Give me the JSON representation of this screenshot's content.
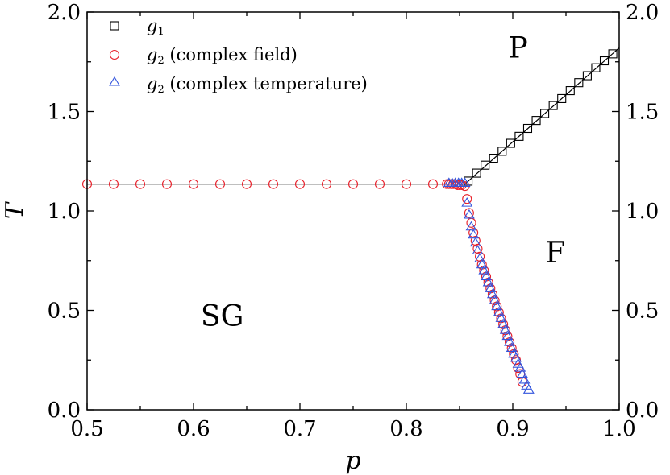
{
  "chart_data": {
    "type": "scatter",
    "title": "",
    "xlabel": "p",
    "ylabel": "T",
    "xlim": [
      0.5,
      1.0
    ],
    "ylim": [
      0.0,
      2.0
    ],
    "grid": false,
    "legend_position": "top-left",
    "xticks": [
      0.5,
      0.6,
      0.7,
      0.8,
      0.9,
      1.0
    ],
    "xtick_labels": [
      "0.5",
      "0.6",
      "0.7",
      "0.8",
      "0.9",
      "1.0"
    ],
    "yticks": [
      0.0,
      0.5,
      1.0,
      1.5,
      2.0
    ],
    "ytick_labels": [
      "0.0",
      "0.5",
      "1.0",
      "1.5",
      "2.0"
    ],
    "regions": [
      {
        "label": "P",
        "x": 0.905,
        "y": 1.82
      },
      {
        "label": "F",
        "x": 0.94,
        "y": 0.79
      },
      {
        "label": "SG",
        "x": 0.627,
        "y": 0.47
      }
    ],
    "lines": [
      {
        "name": "spin-glass boundary",
        "x": [
          0.5,
          0.855
        ],
        "y": [
          1.135,
          1.135
        ]
      },
      {
        "name": "paramagnet boundary",
        "x": [
          0.855,
          1.0
        ],
        "y": [
          1.135,
          1.82
        ]
      }
    ],
    "series": [
      {
        "name": "g1",
        "legend_main": "g",
        "legend_sub": "1",
        "legend_suffix": "",
        "marker": "square",
        "color": "#000000",
        "x": [
          0.858,
          0.866,
          0.874,
          0.882,
          0.89,
          0.898,
          0.906,
          0.914,
          0.922,
          0.93,
          0.938,
          0.946,
          0.954,
          0.962,
          0.97,
          0.978,
          0.986,
          0.994
        ],
        "y": [
          1.15,
          1.19,
          1.23,
          1.265,
          1.3,
          1.34,
          1.375,
          1.415,
          1.455,
          1.49,
          1.53,
          1.565,
          1.605,
          1.645,
          1.68,
          1.72,
          1.755,
          1.79
        ]
      },
      {
        "name": "g2 (complex field)",
        "legend_main": "g",
        "legend_sub": "2",
        "legend_suffix": " (complex field)",
        "marker": "circle",
        "color": "#e8202a",
        "x": [
          0.5,
          0.525,
          0.55,
          0.575,
          0.6,
          0.625,
          0.65,
          0.675,
          0.7,
          0.725,
          0.75,
          0.775,
          0.8,
          0.825,
          0.838,
          0.84,
          0.842,
          0.844,
          0.846,
          0.848,
          0.85,
          0.852,
          0.855,
          0.857,
          0.859,
          0.861,
          0.863,
          0.865,
          0.867,
          0.869,
          0.871,
          0.873,
          0.875,
          0.877,
          0.879,
          0.881,
          0.883,
          0.885,
          0.887,
          0.889,
          0.891,
          0.893,
          0.895,
          0.897,
          0.899,
          0.901,
          0.903,
          0.905,
          0.907,
          0.909
        ],
        "y": [
          1.135,
          1.135,
          1.135,
          1.135,
          1.135,
          1.135,
          1.135,
          1.135,
          1.135,
          1.135,
          1.135,
          1.135,
          1.135,
          1.135,
          1.135,
          1.135,
          1.135,
          1.135,
          1.135,
          1.13,
          1.13,
          1.13,
          1.125,
          1.06,
          0.99,
          0.94,
          0.89,
          0.85,
          0.81,
          0.77,
          0.73,
          0.7,
          0.67,
          0.64,
          0.61,
          0.58,
          0.55,
          0.52,
          0.49,
          0.46,
          0.43,
          0.4,
          0.37,
          0.34,
          0.31,
          0.28,
          0.25,
          0.21,
          0.18,
          0.14
        ]
      },
      {
        "name": "g2 (complex temperature)",
        "legend_main": "g",
        "legend_sub": "2",
        "legend_suffix": " (complex temperature)",
        "marker": "triangle",
        "color": "#3355dd",
        "x": [
          0.84,
          0.843,
          0.846,
          0.849,
          0.852,
          0.855,
          0.857,
          0.859,
          0.861,
          0.863,
          0.865,
          0.867,
          0.869,
          0.871,
          0.873,
          0.875,
          0.877,
          0.879,
          0.881,
          0.883,
          0.885,
          0.887,
          0.889,
          0.891,
          0.893,
          0.895,
          0.897,
          0.899,
          0.901,
          0.903,
          0.905,
          0.907,
          0.909,
          0.911,
          0.913,
          0.915
        ],
        "y": [
          1.14,
          1.14,
          1.14,
          1.14,
          1.14,
          1.14,
          1.04,
          0.98,
          0.92,
          0.88,
          0.84,
          0.8,
          0.76,
          0.73,
          0.7,
          0.67,
          0.64,
          0.61,
          0.58,
          0.55,
          0.52,
          0.49,
          0.46,
          0.43,
          0.4,
          0.37,
          0.34,
          0.31,
          0.28,
          0.26,
          0.23,
          0.21,
          0.18,
          0.15,
          0.12,
          0.1
        ]
      }
    ]
  }
}
